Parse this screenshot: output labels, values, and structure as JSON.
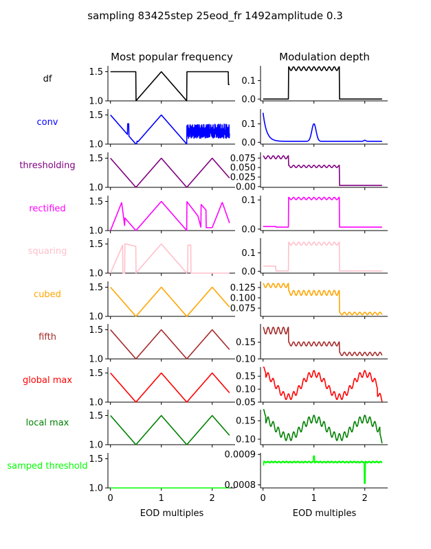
{
  "figure": {
    "suptitle": "sampling 83425step 25eod_fr 1492amplitude 0.3",
    "col_titles": [
      "Most popular frequency",
      "Modulation depth"
    ],
    "xlabel": "EOD multiples"
  },
  "chart_data": [
    {
      "row": 0,
      "label": "df",
      "color": "#000000",
      "type": "line",
      "left": {
        "ylim": [
          1.0,
          1.6
        ],
        "yticks": [
          "1.0",
          "1.5"
        ],
        "shape": "df"
      },
      "right": {
        "ylim": [
          -0.01,
          0.18
        ],
        "yticks": [
          [
            "0.0",
            0.0
          ],
          [
            "0.1",
            0.1
          ]
        ],
        "shape": "df_mod"
      }
    },
    {
      "row": 1,
      "label": "conv",
      "color": "#0000ff",
      "type": "line",
      "left": {
        "ylim": [
          1.0,
          1.6
        ],
        "yticks": [
          "1.0",
          "1.5"
        ],
        "shape": "conv"
      },
      "right": {
        "ylim": [
          -0.01,
          0.18
        ],
        "yticks": [
          [
            "0.0",
            0.0
          ],
          [
            "0.1",
            0.1
          ]
        ],
        "shape": "conv_mod"
      }
    },
    {
      "row": 2,
      "label": "thresholding",
      "color": "#800080",
      "type": "line",
      "left": {
        "ylim": [
          1.0,
          1.6
        ],
        "yticks": [
          "1.0",
          "1.5"
        ],
        "shape": "triangle"
      },
      "right": {
        "ylim": [
          -0.002,
          0.09
        ],
        "yticks": [
          [
            "0.00",
            0.0
          ],
          [
            "0.025",
            0.025
          ],
          [
            "0.050",
            0.05
          ],
          [
            "0.075",
            0.075
          ]
        ],
        "shape": "thr_mod"
      }
    },
    {
      "row": 3,
      "label": "rectified",
      "color": "#ff00ff",
      "type": "line",
      "left": {
        "ylim": [
          1.0,
          1.6
        ],
        "yticks": [
          "1.0",
          "1.5"
        ],
        "shape": "rectified"
      },
      "right": {
        "ylim": [
          -0.005,
          0.115
        ],
        "yticks": [
          [
            "0.0",
            0.0
          ],
          [
            "0.1",
            0.1
          ]
        ],
        "shape": "rect_mod"
      }
    },
    {
      "row": 4,
      "label": "squaring",
      "color": "#ffc0cb",
      "type": "line",
      "left": {
        "ylim": [
          1.0,
          1.6
        ],
        "yticks": [
          "1.0",
          "1.5"
        ],
        "shape": "squaring"
      },
      "right": {
        "ylim": [
          -0.01,
          0.18
        ],
        "yticks": [
          [
            "0.0",
            0.0
          ],
          [
            "0.1",
            0.1
          ]
        ],
        "shape": "sq_mod"
      }
    },
    {
      "row": 5,
      "label": "cubed",
      "color": "#ffa500",
      "type": "line",
      "left": {
        "ylim": [
          1.0,
          1.6
        ],
        "yticks": [
          "1.0",
          "1.5"
        ],
        "shape": "triangle"
      },
      "right": {
        "ylim": [
          0.055,
          0.14
        ],
        "yticks": [
          [
            "0.075",
            0.075
          ],
          [
            "0.100",
            0.1
          ],
          [
            "0.125",
            0.125
          ]
        ],
        "shape": "cub_mod"
      }
    },
    {
      "row": 6,
      "label": "fifth",
      "color": "#a52a2a",
      "type": "line",
      "left": {
        "ylim": [
          1.0,
          1.6
        ],
        "yticks": [
          "1.0",
          "1.5"
        ],
        "shape": "triangle"
      },
      "right": {
        "ylim": [
          0.1,
          0.205
        ],
        "yticks": [
          [
            "0.10",
            0.1
          ],
          [
            "0.15",
            0.15
          ]
        ],
        "shape": "fifth_mod"
      }
    },
    {
      "row": 7,
      "label": "global max",
      "color": "#ff0000",
      "type": "line",
      "left": {
        "ylim": [
          1.0,
          1.6
        ],
        "yticks": [
          "1.0",
          "1.5"
        ],
        "shape": "triangle"
      },
      "right": {
        "ylim": [
          0.05,
          0.185
        ],
        "yticks": [
          [
            "0.05",
            0.05
          ],
          [
            "0.10",
            0.1
          ],
          [
            "0.15",
            0.15
          ]
        ],
        "shape": "gmax_mod"
      }
    },
    {
      "row": 8,
      "label": "local max",
      "color": "#008000",
      "type": "line",
      "left": {
        "ylim": [
          1.0,
          1.6
        ],
        "yticks": [
          "1.0",
          "1.5"
        ],
        "shape": "triangle"
      },
      "right": {
        "ylim": [
          0.085,
          0.18
        ],
        "yticks": [
          [
            "0.10",
            0.1
          ],
          [
            "0.15",
            0.15
          ]
        ],
        "shape": "lmax_mod"
      }
    },
    {
      "row": 9,
      "label": "samped threshold",
      "color": "#00ff00",
      "type": "line",
      "left": {
        "ylim": [
          1.0,
          1.6
        ],
        "yticks": [
          "1.0",
          "1.5"
        ],
        "shape": "flat"
      },
      "right": {
        "ylim": [
          0.00079,
          0.000905
        ],
        "yticks": [
          [
            "0.0008",
            0.0008
          ],
          [
            "0.0009",
            0.0009
          ]
        ],
        "shape": "samp_mod"
      }
    }
  ],
  "x_axis": {
    "xlim": [
      -0.05,
      2.45
    ],
    "xticks": [
      "0",
      "1",
      "2"
    ]
  }
}
